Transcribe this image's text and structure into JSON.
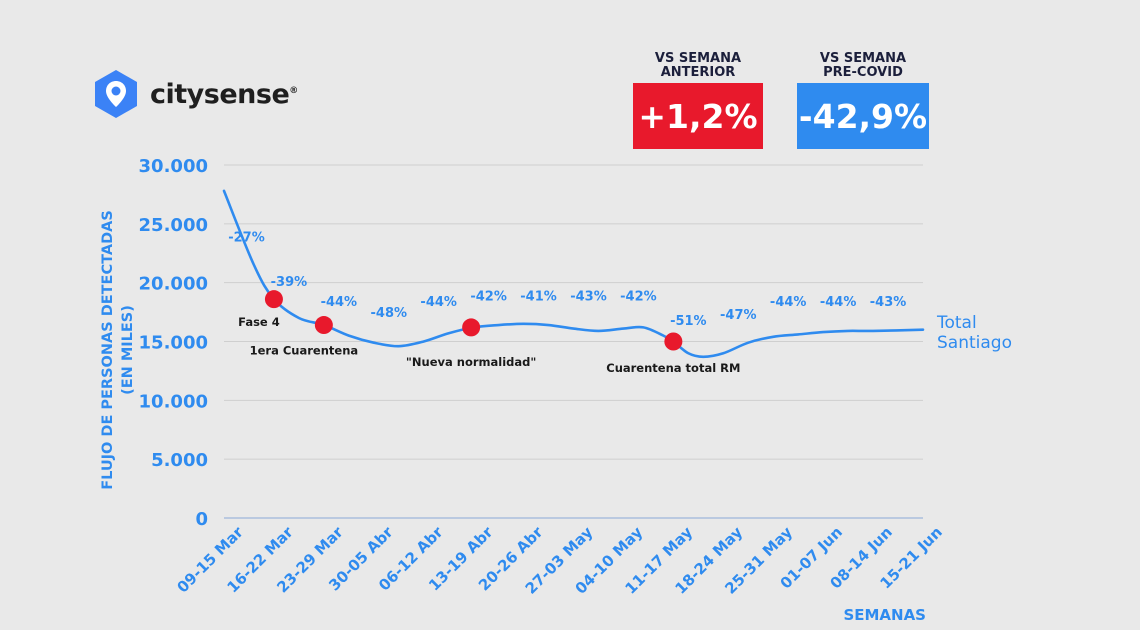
{
  "brand": {
    "name": "citysense",
    "mark": "®",
    "icon": "hexagon-pin-icon",
    "icon_color": "#3b82f6"
  },
  "kpis": [
    {
      "label_lines": [
        "VS SEMANA",
        "ANTERIOR"
      ],
      "value": "+1,2%",
      "color": "#e8192c"
    },
    {
      "label_lines": [
        "VS SEMANA",
        "PRE-COVID"
      ],
      "value": "-42,9%",
      "color": "#2f8bef"
    }
  ],
  "chart_data": {
    "type": "line",
    "ylabel_lines": [
      "FLUJO DE PERSONAS DETECTADAS",
      "(EN MILES)"
    ],
    "xlabel": "SEMANAS",
    "ylim": [
      0,
      30000
    ],
    "yticks": [
      0,
      5000,
      10000,
      15000,
      20000,
      25000,
      30000
    ],
    "ytick_labels": [
      "0",
      "5.000",
      "10.000",
      "15.000",
      "20.000",
      "25.000",
      "30.000"
    ],
    "grid": true,
    "categories": [
      "09-15 Mar",
      "16-22 Mar",
      "23-29 Mar",
      "30-05 Abr",
      "06-12 Abr",
      "13-19 Abr",
      "20-26 Abr",
      "27-03 May",
      "04-10 May",
      "11-17 May",
      "18-24 May",
      "25-31 May",
      "01-07 Jun",
      "08-14 Jun",
      "15-21 Jun"
    ],
    "series": [
      {
        "name": "Total Santiago",
        "name_lines": [
          "Total",
          "Santiago"
        ],
        "color": "#2f8bef",
        "curve_points": [
          [
            0,
            27800
          ],
          [
            0.6,
            21500
          ],
          [
            1.0,
            18600
          ],
          [
            1.5,
            17000
          ],
          [
            2.0,
            16400
          ],
          [
            2.5,
            15500
          ],
          [
            3.0,
            14900
          ],
          [
            3.5,
            14600
          ],
          [
            4.0,
            15000
          ],
          [
            4.5,
            15700
          ],
          [
            5.0,
            16200
          ],
          [
            5.5,
            16400
          ],
          [
            6.0,
            16500
          ],
          [
            6.5,
            16400
          ],
          [
            7.0,
            16100
          ],
          [
            7.5,
            15900
          ],
          [
            8.0,
            16100
          ],
          [
            8.4,
            16200
          ],
          [
            8.8,
            15500
          ],
          [
            9.0,
            15000
          ],
          [
            9.3,
            14000
          ],
          [
            9.6,
            13700
          ],
          [
            10.0,
            14000
          ],
          [
            10.5,
            14900
          ],
          [
            11.0,
            15400
          ],
          [
            11.5,
            15600
          ],
          [
            12.0,
            15800
          ],
          [
            12.5,
            15900
          ],
          [
            13.0,
            15900
          ],
          [
            14.0,
            16000
          ]
        ]
      }
    ],
    "annotations": [
      {
        "text": "-27%",
        "x": 0.45,
        "y": 23500
      },
      {
        "text": "-39%",
        "x": 1.3,
        "y": 19700
      },
      {
        "text": "-44%",
        "x": 2.3,
        "y": 18000
      },
      {
        "text": "-48%",
        "x": 3.3,
        "y": 17100
      },
      {
        "text": "-44%",
        "x": 4.3,
        "y": 18000
      },
      {
        "text": "-42%",
        "x": 5.3,
        "y": 18500
      },
      {
        "text": "-41%",
        "x": 6.3,
        "y": 18500
      },
      {
        "text": "-43%",
        "x": 7.3,
        "y": 18500
      },
      {
        "text": "-42%",
        "x": 8.3,
        "y": 18500
      },
      {
        "text": "-51%",
        "x": 9.3,
        "y": 16400
      },
      {
        "text": "-47%",
        "x": 10.3,
        "y": 16900
      },
      {
        "text": "-44%",
        "x": 11.3,
        "y": 18000
      },
      {
        "text": "-44%",
        "x": 12.3,
        "y": 18000
      },
      {
        "text": "-43%",
        "x": 13.3,
        "y": 18000
      }
    ],
    "events": [
      {
        "label": "Fase 4",
        "x": 1.0,
        "y": 18600,
        "label_x": 0.7,
        "label_y": 16300
      },
      {
        "label": "1era Cuarentena",
        "x": 2.0,
        "y": 16400,
        "label_x": 1.6,
        "label_y": 13900
      },
      {
        "label": "\"Nueva normalidad\"",
        "x": 4.95,
        "y": 16200,
        "label_x": 4.95,
        "label_y": 12900
      },
      {
        "label": "Cuarentena total RM",
        "x": 9.0,
        "y": 15000,
        "label_x": 9.0,
        "label_y": 12400
      }
    ],
    "event_color": "#e8192c"
  }
}
